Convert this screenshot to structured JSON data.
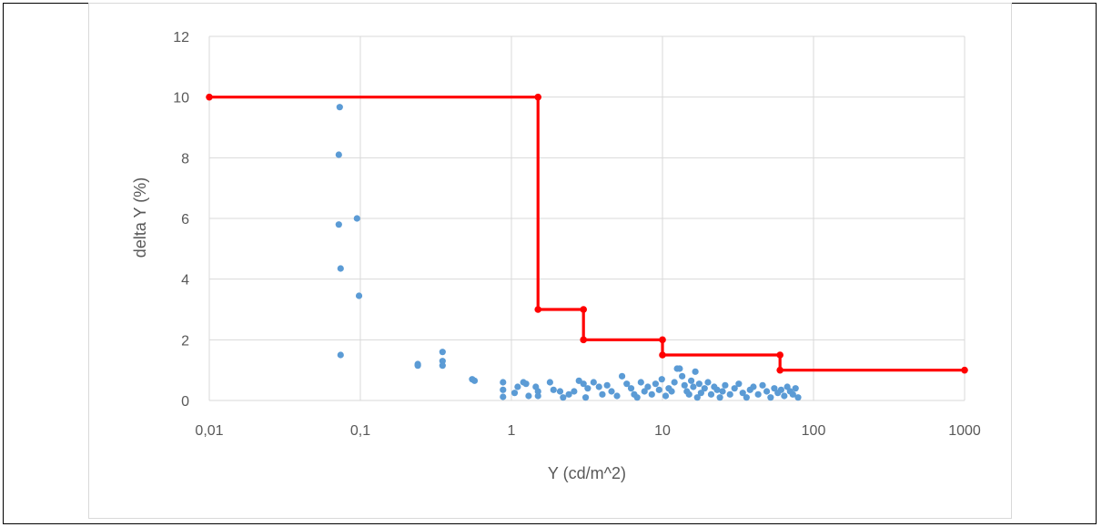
{
  "chart_data": {
    "type": "scatter",
    "title": "",
    "xlabel": "Y (cd/m^2)",
    "ylabel": "delta Y (%)",
    "x_scale": "log",
    "xlim": [
      0.01,
      1000
    ],
    "ylim": [
      0,
      12
    ],
    "x_ticks": [
      0.01,
      0.1,
      1,
      10,
      100,
      1000
    ],
    "x_tick_labels": [
      "0,01",
      "0,1",
      "1",
      "10",
      "100",
      "1000"
    ],
    "y_ticks": [
      0,
      2,
      4,
      6,
      8,
      10,
      12
    ],
    "y_tick_labels": [
      "0",
      "2",
      "4",
      "6",
      "8",
      "10",
      "12"
    ],
    "grid": true,
    "legend": "none",
    "colors": {
      "points": "#5b9bd5",
      "limit_line": "#ff0000",
      "grid": "#d9d9d9",
      "text": "#595959"
    },
    "series": [
      {
        "type": "scatter",
        "color": "#5b9bd5",
        "points": [
          [
            0.073,
            9.67
          ],
          [
            0.072,
            8.1
          ],
          [
            0.072,
            5.8
          ],
          [
            0.095,
            6.0
          ],
          [
            0.074,
            4.35
          ],
          [
            0.098,
            3.45
          ],
          [
            0.074,
            1.5
          ],
          [
            0.24,
            1.2
          ],
          [
            0.24,
            1.15
          ],
          [
            0.35,
            1.6
          ],
          [
            0.35,
            1.3
          ],
          [
            0.35,
            1.15
          ],
          [
            0.55,
            0.7
          ],
          [
            0.57,
            0.65
          ],
          [
            0.88,
            0.6
          ],
          [
            0.88,
            0.35
          ],
          [
            0.88,
            0.12
          ],
          [
            1.05,
            0.25
          ],
          [
            1.1,
            0.45
          ],
          [
            1.2,
            0.6
          ],
          [
            1.25,
            0.55
          ],
          [
            1.3,
            0.15
          ],
          [
            1.45,
            0.45
          ],
          [
            1.5,
            0.3
          ],
          [
            1.5,
            0.15
          ],
          [
            1.8,
            0.6
          ],
          [
            1.9,
            0.35
          ],
          [
            2.1,
            0.3
          ],
          [
            2.2,
            0.1
          ],
          [
            2.4,
            0.2
          ],
          [
            2.6,
            0.3
          ],
          [
            2.8,
            0.65
          ],
          [
            3.0,
            0.55
          ],
          [
            3.2,
            0.4
          ],
          [
            3.1,
            0.1
          ],
          [
            3.5,
            0.6
          ],
          [
            3.8,
            0.45
          ],
          [
            4.0,
            0.2
          ],
          [
            4.3,
            0.5
          ],
          [
            4.6,
            0.3
          ],
          [
            5.0,
            0.15
          ],
          [
            5.4,
            0.8
          ],
          [
            5.8,
            0.55
          ],
          [
            6.2,
            0.4
          ],
          [
            6.5,
            0.2
          ],
          [
            6.8,
            0.1
          ],
          [
            7.2,
            0.6
          ],
          [
            7.6,
            0.3
          ],
          [
            8.0,
            0.45
          ],
          [
            8.5,
            0.2
          ],
          [
            9.0,
            0.55
          ],
          [
            9.5,
            0.35
          ],
          [
            9.9,
            0.7
          ],
          [
            10.5,
            0.15
          ],
          [
            11,
            0.4
          ],
          [
            11.5,
            0.3
          ],
          [
            12,
            0.6
          ],
          [
            12.5,
            1.05
          ],
          [
            13,
            1.05
          ],
          [
            13.5,
            0.8
          ],
          [
            14,
            0.5
          ],
          [
            14.5,
            0.3
          ],
          [
            15,
            0.2
          ],
          [
            15.5,
            0.65
          ],
          [
            16,
            0.45
          ],
          [
            16.5,
            0.95
          ],
          [
            17,
            0.1
          ],
          [
            17.5,
            0.55
          ],
          [
            18,
            0.25
          ],
          [
            19,
            0.4
          ],
          [
            20,
            0.6
          ],
          [
            21,
            0.2
          ],
          [
            22,
            0.45
          ],
          [
            23,
            0.35
          ],
          [
            24,
            0.1
          ],
          [
            25,
            0.3
          ],
          [
            26,
            0.5
          ],
          [
            28,
            0.2
          ],
          [
            30,
            0.4
          ],
          [
            32,
            0.55
          ],
          [
            34,
            0.25
          ],
          [
            36,
            0.1
          ],
          [
            38,
            0.35
          ],
          [
            40,
            0.45
          ],
          [
            43,
            0.2
          ],
          [
            46,
            0.5
          ],
          [
            49,
            0.3
          ],
          [
            52,
            0.1
          ],
          [
            55,
            0.4
          ],
          [
            58,
            0.25
          ],
          [
            61,
            0.35
          ],
          [
            64,
            0.15
          ],
          [
            67,
            0.45
          ],
          [
            70,
            0.3
          ],
          [
            73,
            0.2
          ],
          [
            76,
            0.4
          ],
          [
            79,
            0.1
          ]
        ]
      },
      {
        "type": "line",
        "color": "#ff0000",
        "points": [
          [
            0.01,
            10
          ],
          [
            1.5,
            10
          ],
          [
            1.5,
            3
          ],
          [
            3,
            3
          ],
          [
            3,
            2
          ],
          [
            10,
            2
          ],
          [
            10,
            1.5
          ],
          [
            60,
            1.5
          ],
          [
            60,
            1
          ],
          [
            1000,
            1
          ]
        ]
      }
    ]
  }
}
